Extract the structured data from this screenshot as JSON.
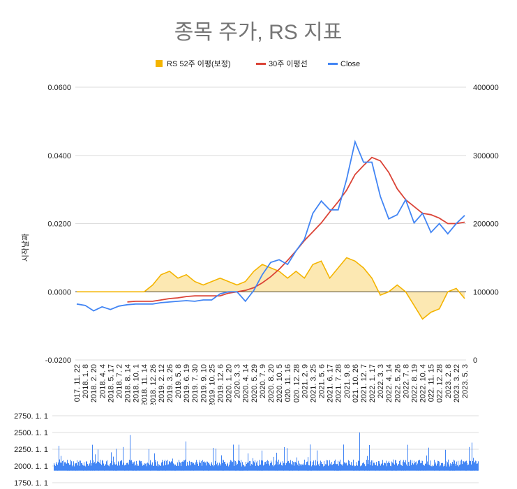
{
  "chart_data": [
    {
      "type": "line",
      "title": "종목 주가, RS 지표",
      "ylabel": "시작날짜",
      "y_left_lim": [
        -0.02,
        0.06
      ],
      "y_left_ticks": [
        "-0.0200",
        "0.0000",
        "0.0200",
        "0.0400",
        "0.0600"
      ],
      "y_right_lim": [
        0,
        400000
      ],
      "y_right_ticks": [
        "0",
        "100000",
        "200000",
        "300000",
        "400000"
      ],
      "grid": true,
      "legend_position": "top",
      "x_tick_labels": [
        "017. 11. 22",
        "2018. 1. 8",
        "2018. 2. 20",
        "2018. 4. 4",
        "2018. 5. 17",
        "2018. 7. 2",
        "2018. 8. 14",
        "2018. 10. 1",
        "2018. 11. 14",
        "2018. 12. 26",
        "2019. 2. 12",
        "2019. 3. 26",
        "2019. 5. 8",
        "2019. 6. 19",
        "2019. 7. 30",
        "2019. 9. 10",
        "2019. 10. 25",
        "2019. 12. 6",
        "2020. 1. 20",
        "2020. 3. 3",
        "2020. 4. 14",
        "2020. 5. 29",
        "2020. 7. 9",
        "2020. 8. 20",
        "2020. 10. 5",
        "020. 11. 16",
        "020. 12. 28",
        "2021. 2. 9",
        "2021. 3. 25",
        "2021. 5. 6",
        "2021. 6. 17",
        "2021. 7. 28",
        "2021. 9. 8",
        "021. 10. 26",
        "2021. 12. 7",
        "2022. 1. 17",
        "2022. 3. 3",
        "2022. 4. 14",
        "2022. 5. 26",
        "2022. 7. 8",
        "2022. 8. 19",
        "2022. 10. 4",
        "022. 11. 15",
        "022. 12. 28",
        "2023. 2. 8",
        "2023. 3. 22",
        "2023. 5. 3"
      ],
      "series": [
        {
          "name": "RS 52주 이평(보정)",
          "color": "#F4B400",
          "axis": "left",
          "values": [
            0,
            0,
            0,
            0,
            0,
            0,
            0,
            0,
            0,
            0.002,
            0.005,
            0.006,
            0.004,
            0.005,
            0.003,
            0.002,
            0.003,
            0.004,
            0.003,
            0.002,
            0.003,
            0.006,
            0.008,
            0.007,
            0.006,
            0.004,
            0.006,
            0.004,
            0.008,
            0.009,
            0.004,
            0.007,
            0.01,
            0.009,
            0.007,
            0.004,
            -0.001,
            0,
            0.002,
            0,
            -0.004,
            -0.008,
            -0.006,
            -0.005,
            0,
            0.001,
            -0.002
          ]
        },
        {
          "name": "30주 이평선",
          "color": "#DB4437",
          "axis": "right",
          "values": [
            null,
            null,
            null,
            null,
            null,
            null,
            85000,
            86000,
            86000,
            86000,
            88000,
            90000,
            91000,
            93000,
            94000,
            94000,
            94000,
            94000,
            98000,
            100000,
            102000,
            106000,
            113000,
            122000,
            133000,
            146000,
            160000,
            175000,
            188000,
            201000,
            217000,
            232000,
            249000,
            272000,
            285000,
            297000,
            292000,
            275000,
            251000,
            235000,
            225000,
            215000,
            213000,
            208000,
            200000,
            200000,
            202000
          ]
        },
        {
          "name": "Close",
          "color": "#4285F4",
          "axis": "right",
          "values": [
            82000,
            80000,
            72000,
            78000,
            74000,
            79000,
            81000,
            82000,
            82000,
            82000,
            84000,
            85000,
            86000,
            87000,
            86000,
            88000,
            88000,
            97000,
            100000,
            100000,
            86000,
            102000,
            125000,
            143000,
            147000,
            140000,
            160000,
            177000,
            215000,
            233000,
            220000,
            220000,
            265000,
            320000,
            290000,
            290000,
            240000,
            207000,
            213000,
            235000,
            201000,
            215000,
            187000,
            200000,
            185000,
            200000,
            212000
          ]
        }
      ]
    },
    {
      "type": "bar",
      "y_ticks": [
        "1750. 1. 1",
        "2000. 1. 1",
        "2250. 1. 1",
        "2500. 1. 1",
        "2750. 1. 1"
      ],
      "ylim": [
        1750,
        2750
      ],
      "grid": true,
      "series": [
        {
          "color": "#4285F4"
        }
      ]
    }
  ]
}
